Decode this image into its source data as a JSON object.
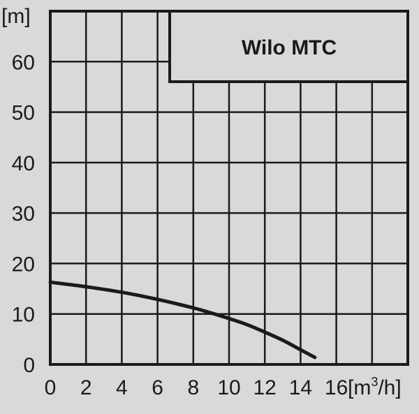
{
  "chart_data": {
    "type": "line",
    "title": "Wilo MTC",
    "ylabel": "[m]",
    "xlabel_prefix": "[m",
    "xlabel_sup": "3",
    "xlabel_suffix": "/h]",
    "xlim": [
      0,
      20
    ],
    "ylim": [
      0,
      70
    ],
    "grid": true,
    "x_ticks": [
      "0",
      "2",
      "4",
      "6",
      "8",
      "10",
      "12",
      "14",
      "16"
    ],
    "y_ticks": [
      "0",
      "10",
      "20",
      "30",
      "40",
      "50",
      "60"
    ],
    "x_tick_values": [
      0,
      2,
      4,
      6,
      8,
      10,
      12,
      14,
      16
    ],
    "y_tick_values": [
      0,
      10,
      20,
      30,
      40,
      50,
      60
    ],
    "x_grid_values": [
      2,
      4,
      6,
      8,
      10,
      12,
      14,
      16,
      18
    ],
    "y_grid_values": [
      10,
      20,
      30,
      40,
      50,
      60
    ],
    "series": [
      {
        "x": [
          0,
          2,
          4,
          6,
          8,
          9,
          10,
          11,
          12,
          13,
          14,
          14.8
        ],
        "y": [
          16.3,
          15.4,
          14.3,
          12.9,
          11.2,
          10.2,
          9.1,
          7.9,
          6.4,
          4.8,
          2.9,
          1.4
        ]
      }
    ],
    "colors": {
      "background": "#d8d9da",
      "ink": "#1a1a1a"
    }
  }
}
